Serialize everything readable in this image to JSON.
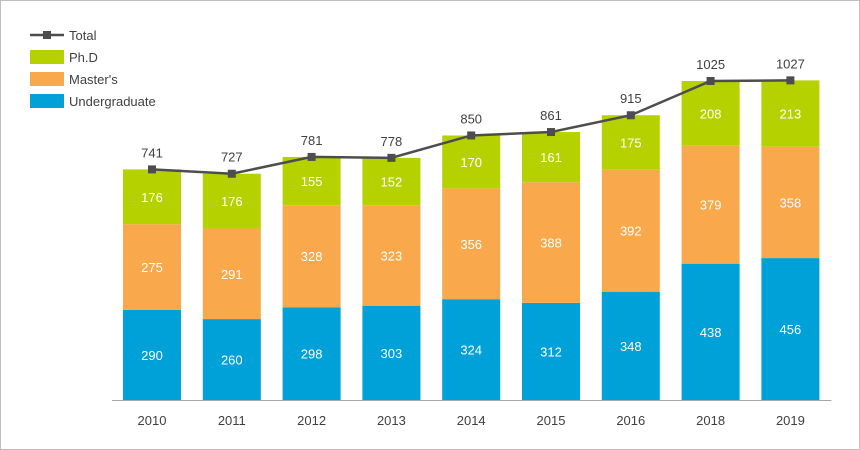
{
  "chart_data": {
    "type": "bar",
    "stacked": true,
    "categories": [
      "2010",
      "2011",
      "2012",
      "2013",
      "2014",
      "2015",
      "2016",
      "2018",
      "2019"
    ],
    "series": [
      {
        "name": "Undergraduate",
        "color": "#00a0d8",
        "values": [
          290,
          260,
          298,
          303,
          324,
          312,
          348,
          438,
          456
        ]
      },
      {
        "name": "Master's",
        "color": "#f9a94b",
        "values": [
          275,
          291,
          328,
          323,
          356,
          388,
          392,
          379,
          358
        ]
      },
      {
        "name": "Ph.D",
        "color": "#b5d200",
        "values": [
          176,
          176,
          155,
          152,
          170,
          161,
          175,
          208,
          213
        ]
      }
    ],
    "line": {
      "name": "Total",
      "color": "#4d4d4d",
      "values": [
        741,
        727,
        781,
        778,
        850,
        861,
        915,
        1025,
        1027
      ]
    },
    "legend_order": [
      "Total",
      "Ph.D",
      "Master's",
      "Undergraduate"
    ],
    "legend_position": "top-left",
    "ylim": [
      0,
      1025
    ],
    "grid": false,
    "title": "",
    "xlabel": "",
    "ylabel": ""
  }
}
